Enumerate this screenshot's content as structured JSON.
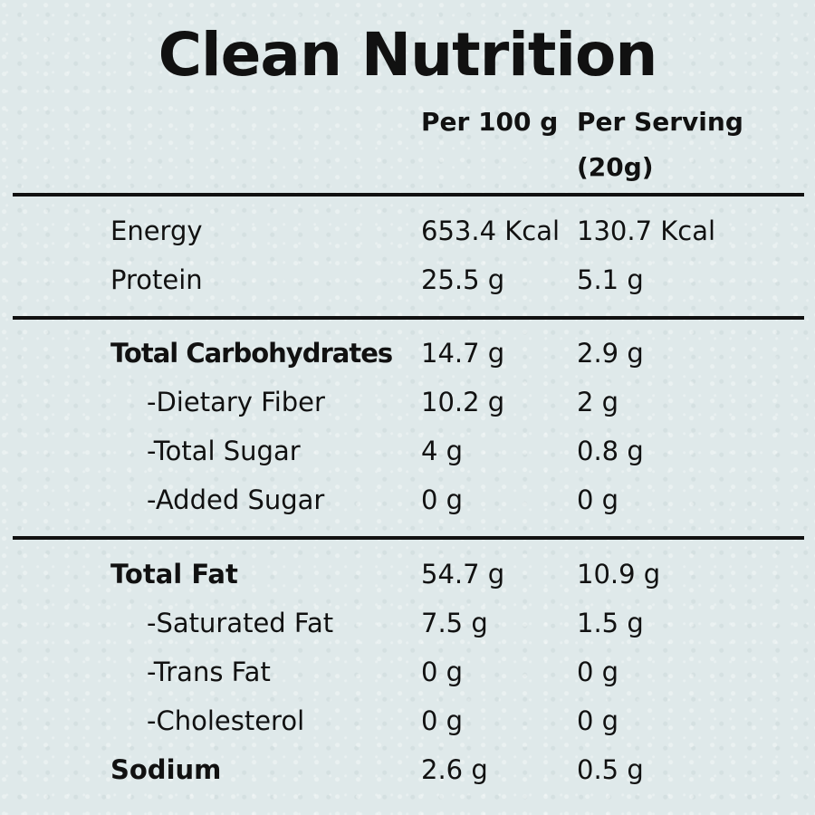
{
  "title": "Clean Nutrition",
  "headers": {
    "per_100g": "Per 100 g",
    "per_serving_line1": "Per Serving",
    "per_serving_line2": "(20g)"
  },
  "rows": [
    {
      "label": "Energy",
      "per_100g": "653.4 Kcal",
      "per_serving": "130.7 Kcal"
    },
    {
      "label": "Protein",
      "per_100g": "25.5 g",
      "per_serving": "5.1 g"
    },
    {
      "label": "Total Carbohydrates",
      "per_100g": "14.7 g",
      "per_serving": "2.9 g"
    },
    {
      "label": "-Dietary Fiber",
      "per_100g": "10.2 g",
      "per_serving": "2 g"
    },
    {
      "label": "-Total Sugar",
      "per_100g": "4 g",
      "per_serving": "0.8 g"
    },
    {
      "label": "-Added Sugar",
      "per_100g": "0 g",
      "per_serving": "0 g"
    },
    {
      "label": "Total Fat",
      "per_100g": "54.7 g",
      "per_serving": "10.9 g"
    },
    {
      "label": "-Saturated Fat",
      "per_100g": "7.5 g",
      "per_serving": "1.5 g"
    },
    {
      "label": "-Trans Fat",
      "per_100g": "0 g",
      "per_serving": "0 g"
    },
    {
      "label": "-Cholesterol",
      "per_100g": "0 g",
      "per_serving": "0 g"
    },
    {
      "label": "Sodium",
      "per_100g": "2.6 g",
      "per_serving": "0.5 g"
    }
  ]
}
